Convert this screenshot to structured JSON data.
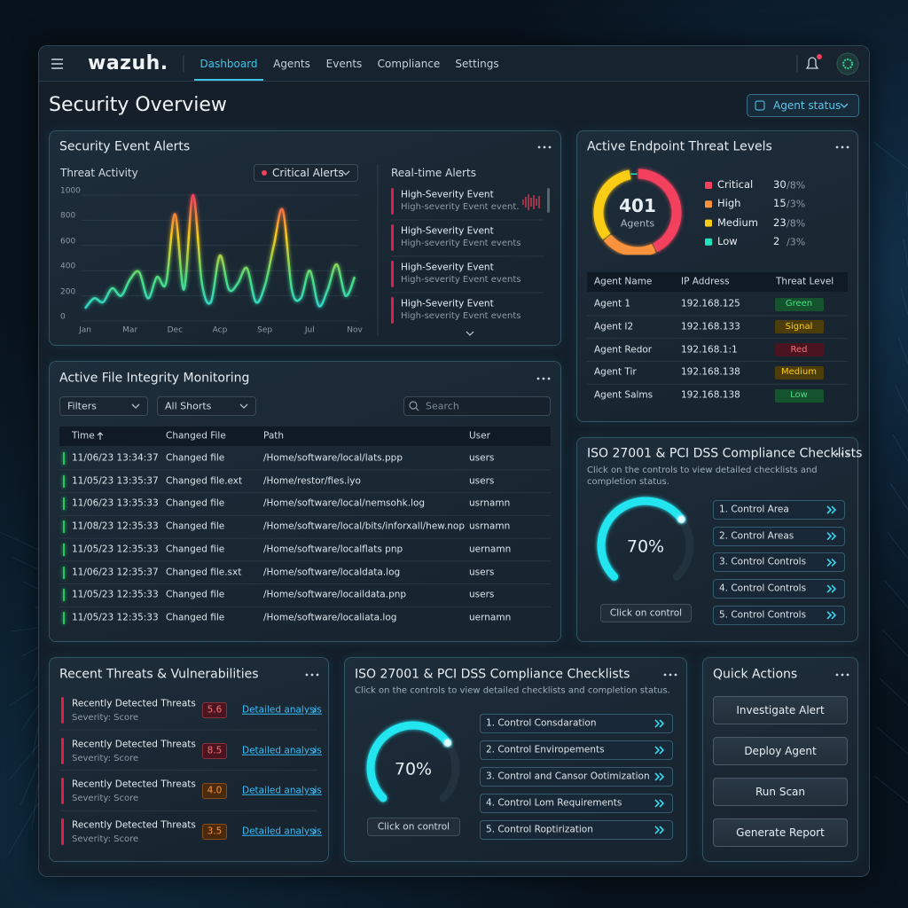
{
  "nav": {
    "brand": "wazuh.",
    "tabs": [
      "Dashboard",
      "Agents",
      "Events",
      "Compliance",
      "Settings"
    ]
  },
  "header": {
    "title": "Security Overview",
    "agent_status": "Agent status"
  },
  "alerts": {
    "title": "Security Event Alerts",
    "chart_data": {
      "type": "line",
      "title": "Threat Activity",
      "categories": [
        "Jan",
        null,
        null,
        null,
        null,
        "Mar",
        null,
        null,
        null,
        null,
        "Dec",
        null,
        null,
        null,
        null,
        "Acp",
        null,
        null,
        null,
        null,
        "Sep",
        null,
        null,
        null,
        null,
        "Jul",
        null,
        null,
        null,
        null,
        "Nov"
      ],
      "values": [
        100,
        180,
        150,
        260,
        200,
        330,
        390,
        180,
        350,
        300,
        850,
        250,
        1000,
        300,
        150,
        520,
        250,
        300,
        420,
        150,
        280,
        600,
        880,
        250,
        180,
        400,
        120,
        250,
        450,
        200,
        350
      ],
      "ylim": [
        0,
        1000
      ],
      "yticks": [
        0,
        200,
        400,
        600,
        800,
        1000
      ],
      "grid": true,
      "colors": [
        "#22d3ee",
        "#4ade80",
        "#facc15",
        "#f43f5e"
      ]
    },
    "filter": "Critical Alerts",
    "realtime": {
      "title": "Real-time Alerts",
      "items": [
        {
          "title": "High-Severity Event",
          "detail": "High-severity Event event."
        },
        {
          "title": "High-Severity Event",
          "detail": "High-severity Event events"
        },
        {
          "title": "High-Severity Event",
          "detail": "High-severity Event events"
        },
        {
          "title": "High-Severity Event",
          "detail": "High-severity Event events"
        }
      ]
    }
  },
  "endpoint": {
    "title": "Active Endpoint Threat Levels",
    "chart_data": {
      "type": "donut",
      "center_value": "401",
      "center_label": "Agents",
      "categories": [
        "Critical",
        "High",
        "Medium",
        "Low"
      ],
      "values": [
        30,
        15,
        23,
        2
      ],
      "shares": [
        "/8%",
        "/3%",
        "/8%",
        "/3%"
      ],
      "colors": [
        "#f43f5e",
        "#fb923c",
        "#facc15",
        "#22e5c0"
      ]
    },
    "table": {
      "headers": [
        "Agent Name",
        "IP Address",
        "Threat Level"
      ],
      "rows": [
        [
          "Agent 1",
          "192.168.125",
          "Green"
        ],
        [
          "Agent I2",
          "192.168.133",
          "Signal"
        ],
        [
          "Agent Redor",
          "192.168.1:1",
          "Red"
        ],
        [
          "Agent Tir",
          "192.168.138",
          "Medium"
        ],
        [
          "Agent Salms",
          "192.168.138",
          "Low"
        ]
      ]
    }
  },
  "fim": {
    "title": "Active File Integrity Monitoring",
    "filters": [
      "Filters",
      "All Shorts"
    ],
    "search": "Search",
    "table": {
      "headers": [
        "Time",
        "Changed File",
        "Path",
        "User"
      ],
      "rows": [
        [
          "11/06/23 13:34:37",
          "Changed file",
          "/Home/software/local/lats.ppp",
          "users"
        ],
        [
          "11/05/23 13:35:37",
          "Changed file.ext",
          "/Home/restor/fies.iyo",
          "users"
        ],
        [
          "11/06/23 13:35:33",
          "Changed file",
          "/Home/software/local/nemsohk.log",
          "usrnamn"
        ],
        [
          "11/08/23 12:35:33",
          "Changed file",
          "/Home/software/local/bits/inforxall/hew.nop",
          "usrnamn"
        ],
        [
          "11/05/23 12:35:33",
          "Changed fiie",
          "/Home/software/localflats pnp",
          "uernamn"
        ],
        [
          "11/06/23 12:35:37",
          "Changed file.sxt",
          "/Home/software/localdata.log",
          "users"
        ],
        [
          "11/05/23 12:35:33",
          "Changed file",
          "/Home/software/locaildata.pnp",
          "users"
        ],
        [
          "11/05/23 12:35:33",
          "Changed file",
          "/Home/software/localiata.log",
          "uernamn"
        ]
      ]
    }
  },
  "compliance_right": {
    "title": "ISO 27001 & PCI DSS Compliance Checklists",
    "description": "Click on the controls to view detailed checklists and completion status.",
    "chart_data": {
      "type": "gauge",
      "value": 70,
      "value_label": "70%",
      "ylim": [
        0,
        100
      ],
      "color": "#22e5f0"
    },
    "button": "Click on control",
    "controls": [
      "1. Control Area",
      "2. Control Areas",
      "3. Control Controls",
      "4. Control Controls",
      "5. Control Controls"
    ]
  },
  "threats": {
    "title": "Recent Threats & Vulnerabilities",
    "items": [
      {
        "title": "Recently Detected Threats",
        "subtitle": "Severity: Score",
        "score": "5.6",
        "link": "Detailed analysis"
      },
      {
        "title": "Recently Detected Threats",
        "subtitle": "Severity: Score",
        "score": "8.5",
        "link": "Detailed analysis"
      },
      {
        "title": "Recently Detected Threats",
        "subtitle": "Severity: Score",
        "score": "4.0",
        "link": "Detailed analysis"
      },
      {
        "title": "Recently Detected Threats",
        "subtitle": "Severity: Score",
        "score": "3.5",
        "link": "Detailed analysis"
      }
    ]
  },
  "compliance_bottom": {
    "title": "ISO 27001 & PCI DSS Compliance Checklists",
    "description": "Click on the controls to view detailed checklists and completion status.",
    "chart_data": {
      "type": "gauge",
      "value": 70,
      "value_label": "70%",
      "ylim": [
        0,
        100
      ],
      "color": "#22e5f0"
    },
    "button": "Click on control",
    "controls": [
      "1. Control Consdaration",
      "2. Control Enviropements",
      "3. Control and Cansor Ootimization",
      "4. Control Lom Requirements",
      "5. Control Roptirization"
    ]
  },
  "quick_actions": {
    "title": "Quick Actions",
    "buttons": [
      "Investigate Alert",
      "Deploy Agent",
      "Run Scan",
      "Generate Report"
    ]
  }
}
